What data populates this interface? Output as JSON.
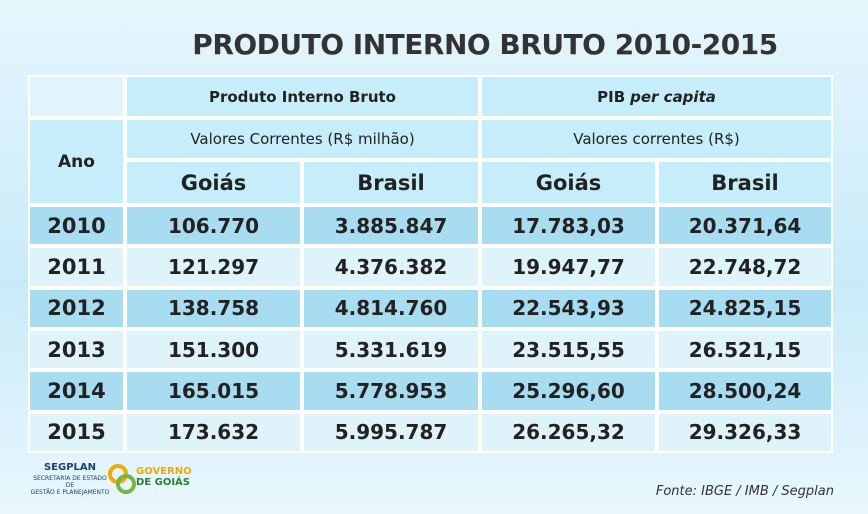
{
  "title": "PRODUTO INTERNO BRUTO 2010-2015",
  "table": {
    "year_header": "Ano",
    "groups": [
      {
        "label": "Produto Interno Bruto",
        "sublabel": "Valores Correntes (R$ milhão)"
      },
      {
        "label": "PIB",
        "label_italic": "per capita",
        "sublabel": "Valores correntes (R$)"
      }
    ],
    "columns": [
      "Goiás",
      "Brasil",
      "Goiás",
      "Brasil"
    ],
    "rows": [
      [
        "2010",
        "106.770",
        "3.885.847",
        "17.783,03",
        "20.371,64"
      ],
      [
        "2011",
        "121.297",
        "4.376.382",
        "19.947,77",
        "22.748,72"
      ],
      [
        "2012",
        "138.758",
        "4.814.760",
        "22.543,93",
        "24.825,15"
      ],
      [
        "2013",
        "151.300",
        "5.331.619",
        "23.515,55",
        "26.521,15"
      ],
      [
        "2014",
        "165.015",
        "5.778.953",
        "25.296,60",
        "28.500,24"
      ],
      [
        "2015",
        "173.632",
        "5.995.787",
        "26.265,32",
        "29.326,33"
      ]
    ]
  },
  "footer": {
    "source": "Fonte: IBGE / IMB / Segplan",
    "logo1": {
      "name": "SEGPLAN",
      "line1": "SECRETARIA DE ESTADO DE",
      "line2": "GESTÃO E PLANEJAMENTO"
    },
    "logo2": {
      "line1": "GOVERNO",
      "line2": "DE GOIÁS"
    }
  }
}
